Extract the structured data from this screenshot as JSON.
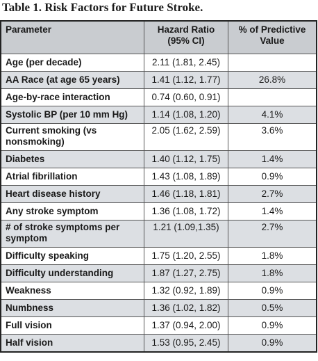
{
  "title": "Table 1. Risk Factors for Future Stroke.",
  "headers": {
    "parameter": "Parameter",
    "hazard_ratio": "Hazard Ratio (95% CI)",
    "predictive": "% of Predictive Value"
  },
  "rows": [
    {
      "parameter": "Age (per decade)",
      "hazard_ratio": "2.11 (1.81, 2.45)",
      "predictive": ""
    },
    {
      "parameter": "AA Race (at age 65 years)",
      "hazard_ratio": "1.41 (1.12, 1.77)",
      "predictive": "26.8%"
    },
    {
      "parameter": "Age-by-race interaction",
      "hazard_ratio": "0.74 (0.60, 0.91)",
      "predictive": ""
    },
    {
      "parameter": "Systolic BP (per 10 mm Hg)",
      "hazard_ratio": "1.14 (1.08, 1.20)",
      "predictive": "4.1%"
    },
    {
      "parameter": "Current smoking (vs nonsmoking)",
      "hazard_ratio": "2.05 (1.62, 2.59)",
      "predictive": "3.6%"
    },
    {
      "parameter": "Diabetes",
      "hazard_ratio": "1.40 (1.12, 1.75)",
      "predictive": "1.4%"
    },
    {
      "parameter": "Atrial fibrillation",
      "hazard_ratio": "1.43 (1.08, 1.89)",
      "predictive": "0.9%"
    },
    {
      "parameter": "Heart disease history",
      "hazard_ratio": "1.46 (1.18, 1.81)",
      "predictive": "2.7%"
    },
    {
      "parameter": "Any stroke symptom",
      "hazard_ratio": "1.36 (1.08, 1.72)",
      "predictive": "1.4%"
    },
    {
      "parameter": "# of stroke symptoms per symptom",
      "hazard_ratio": "1.21 (1.09,1.35)",
      "predictive": "2.7%"
    },
    {
      "parameter": "Difficulty speaking",
      "hazard_ratio": "1.75 (1.20, 2.55)",
      "predictive": "1.8%"
    },
    {
      "parameter": "Difficulty understanding",
      "hazard_ratio": "1.87 (1.27, 2.75)",
      "predictive": "1.8%"
    },
    {
      "parameter": "Weakness",
      "hazard_ratio": "1.32 (0.92, 1.89)",
      "predictive": "0.9%"
    },
    {
      "parameter": "Numbness",
      "hazard_ratio": "1.36 (1.02, 1.82)",
      "predictive": "0.5%"
    },
    {
      "parameter": "Full vision",
      "hazard_ratio": "1.37 (0.94, 2.00)",
      "predictive": "0.9%"
    },
    {
      "parameter": "Half vision",
      "hazard_ratio": "1.53 (0.95, 2.45)",
      "predictive": "0.9%"
    }
  ]
}
